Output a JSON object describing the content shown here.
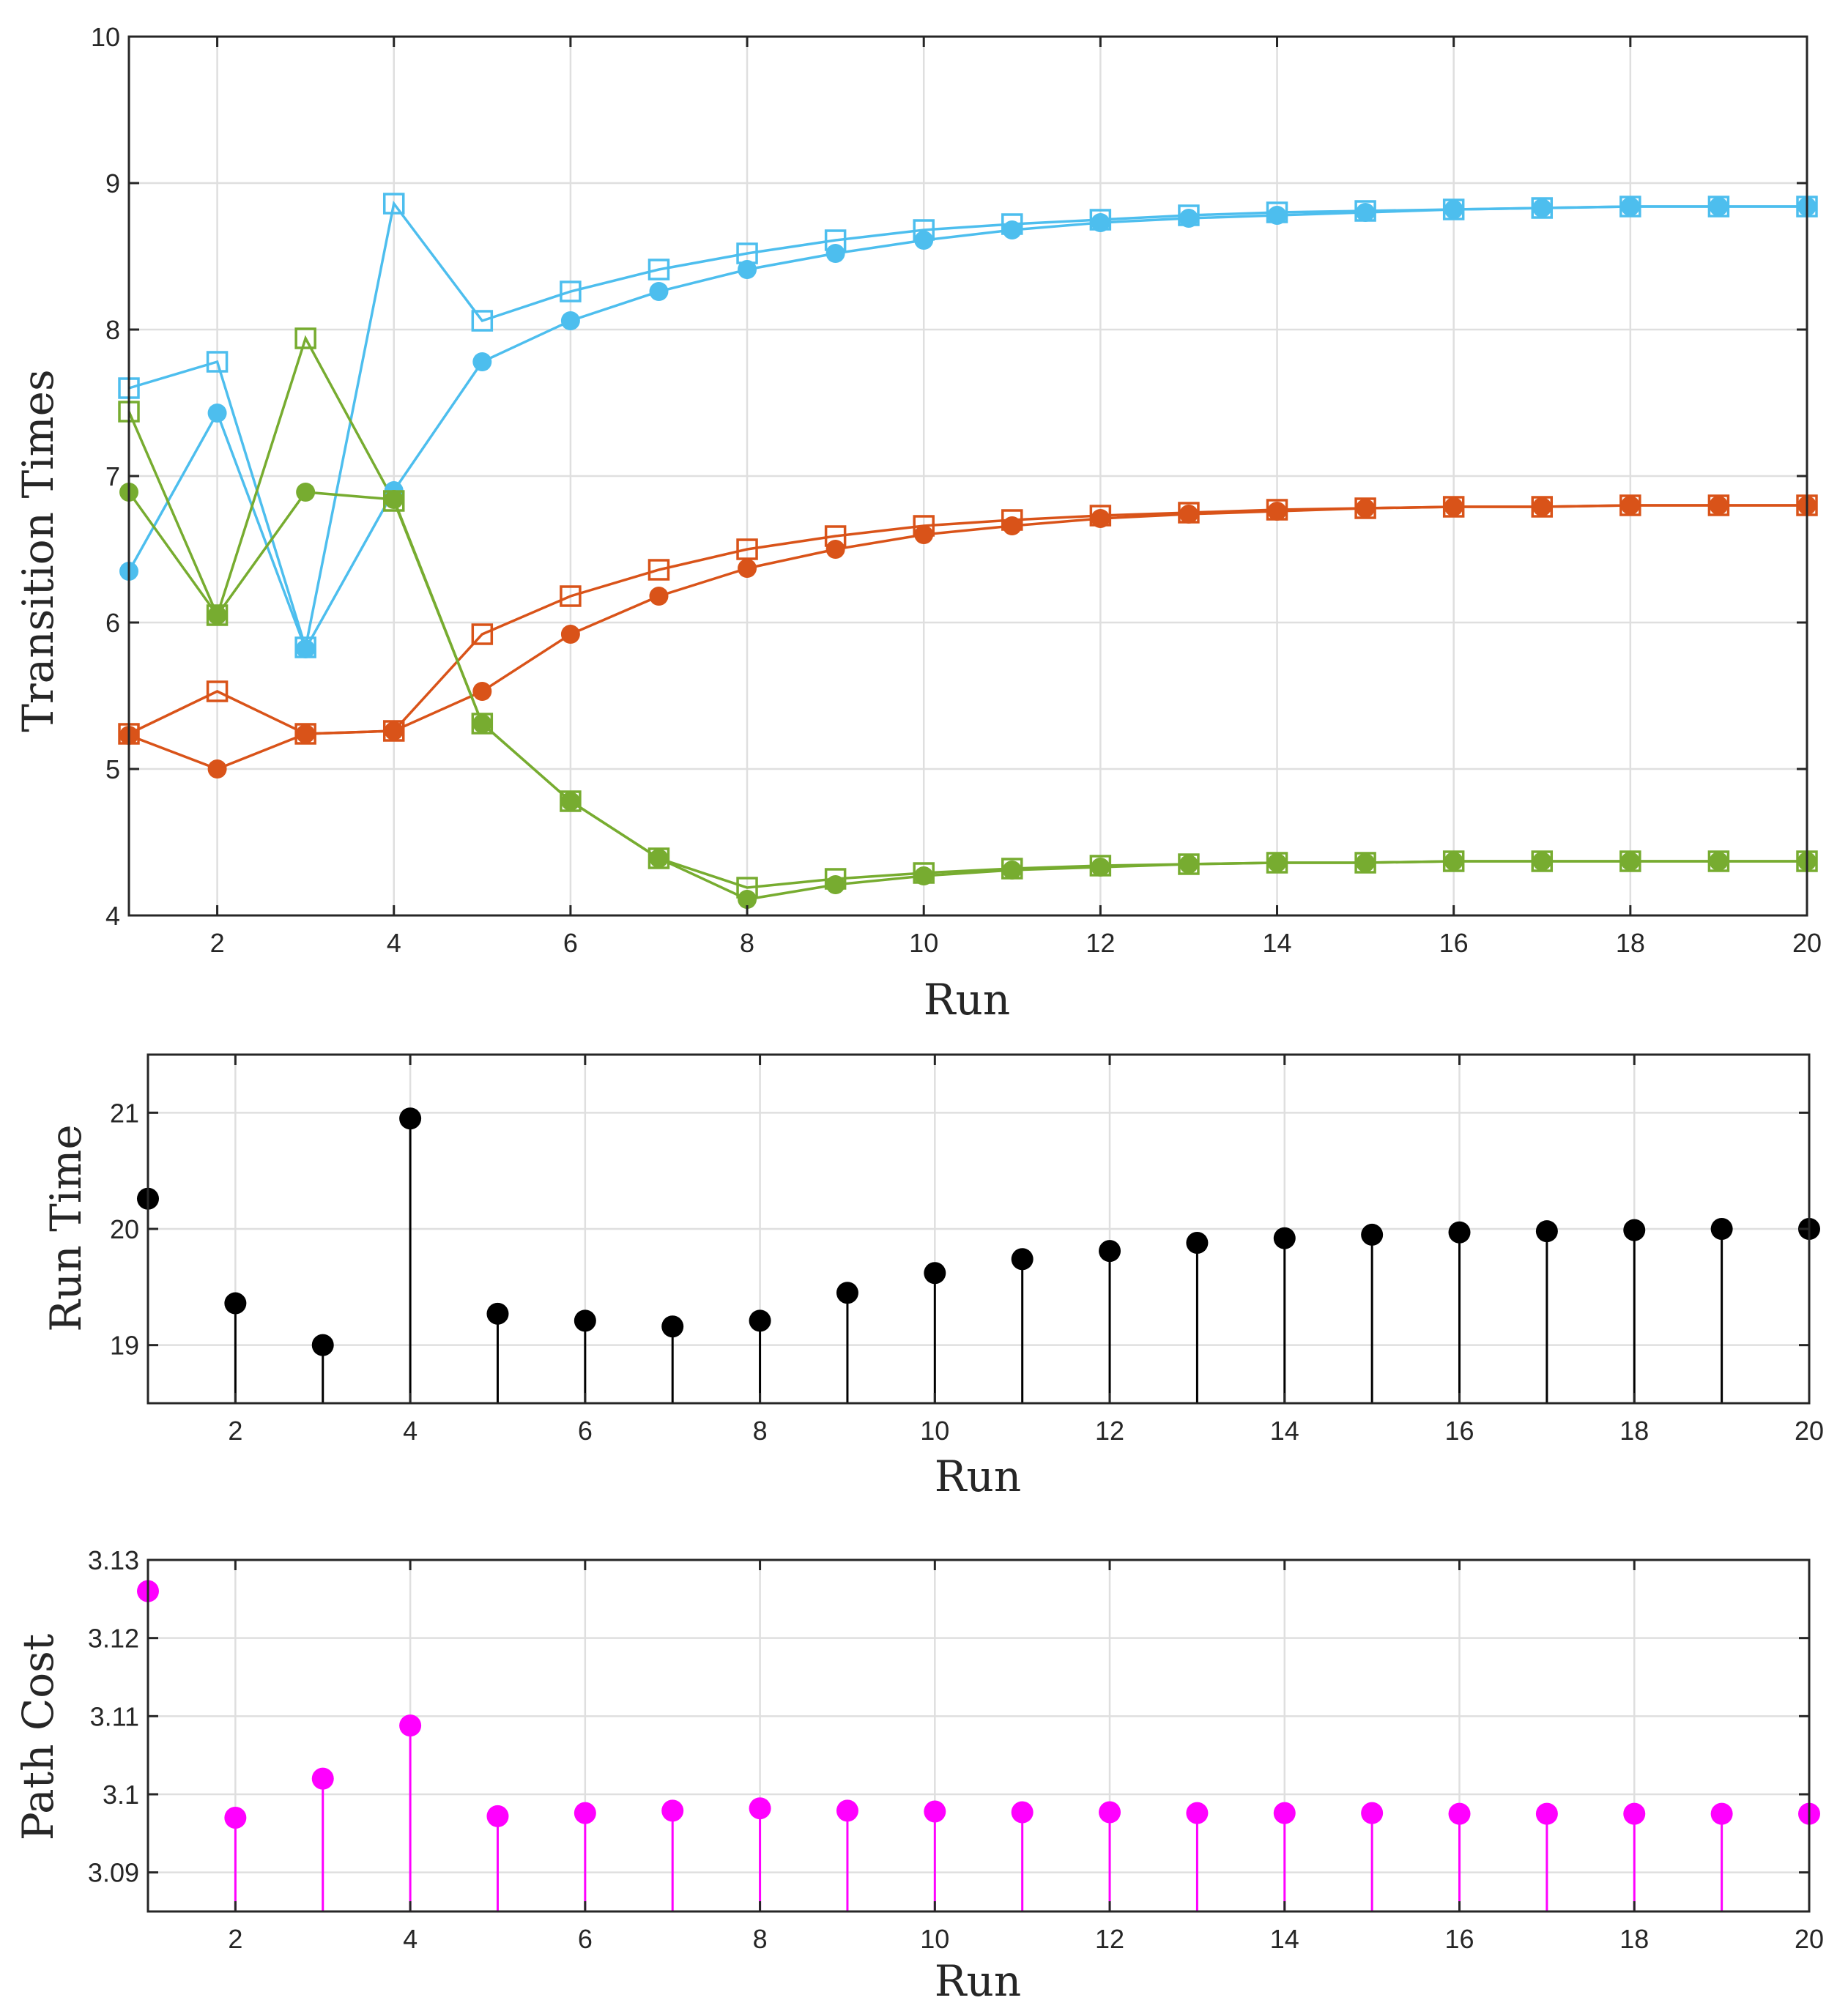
{
  "chart_data": [
    {
      "type": "line",
      "xlabel": "Run",
      "ylabel": "Transition Times",
      "xlim": [
        1,
        20
      ],
      "ylim": [
        4,
        10
      ],
      "xticks": [
        2,
        4,
        6,
        8,
        10,
        12,
        14,
        16,
        18,
        20
      ],
      "yticks": [
        4,
        5,
        6,
        7,
        8,
        9,
        10
      ],
      "grid": true,
      "x": [
        1,
        2,
        3,
        4,
        5,
        6,
        7,
        8,
        9,
        10,
        11,
        12,
        13,
        14,
        15,
        16,
        17,
        18,
        19,
        20
      ],
      "series": [
        {
          "name": "blue-square",
          "color": "#4DBEEE",
          "marker": "square",
          "values": [
            7.6,
            7.78,
            5.83,
            8.86,
            8.06,
            8.26,
            8.41,
            8.52,
            8.61,
            8.68,
            8.72,
            8.75,
            8.78,
            8.8,
            8.81,
            8.82,
            8.83,
            8.84,
            8.84,
            8.84
          ]
        },
        {
          "name": "blue-circle",
          "color": "#4DBEEE",
          "marker": "circle",
          "values": [
            6.35,
            7.43,
            5.82,
            6.9,
            7.78,
            8.06,
            8.26,
            8.41,
            8.52,
            8.61,
            8.68,
            8.73,
            8.76,
            8.78,
            8.8,
            8.82,
            8.83,
            8.84,
            8.84,
            8.84
          ]
        },
        {
          "name": "orange-square",
          "color": "#D95319",
          "marker": "square",
          "values": [
            5.24,
            5.53,
            5.24,
            5.26,
            5.92,
            6.18,
            6.36,
            6.5,
            6.59,
            6.66,
            6.7,
            6.73,
            6.75,
            6.77,
            6.78,
            6.79,
            6.79,
            6.8,
            6.8,
            6.8
          ]
        },
        {
          "name": "orange-circle",
          "color": "#D95319",
          "marker": "circle",
          "values": [
            5.23,
            5.0,
            5.24,
            5.26,
            5.53,
            5.92,
            6.18,
            6.37,
            6.5,
            6.6,
            6.66,
            6.71,
            6.74,
            6.76,
            6.78,
            6.79,
            6.79,
            6.8,
            6.8,
            6.8
          ]
        },
        {
          "name": "green-square",
          "color": "#77AC30",
          "marker": "square",
          "values": [
            7.44,
            6.05,
            7.94,
            6.83,
            5.31,
            4.78,
            4.39,
            4.19,
            4.25,
            4.29,
            4.32,
            4.34,
            4.35,
            4.36,
            4.36,
            4.37,
            4.37,
            4.37,
            4.37,
            4.37
          ]
        },
        {
          "name": "green-circle",
          "color": "#77AC30",
          "marker": "circle",
          "values": [
            6.89,
            6.05,
            6.89,
            6.84,
            5.31,
            4.78,
            4.39,
            4.11,
            4.21,
            4.27,
            4.31,
            4.33,
            4.35,
            4.36,
            4.36,
            4.37,
            4.37,
            4.37,
            4.37,
            4.37
          ]
        }
      ]
    },
    {
      "type": "stem",
      "xlabel": "Run",
      "ylabel": "Run Time",
      "xlim": [
        1,
        20
      ],
      "ylim": [
        18.5,
        21.5
      ],
      "xticks": [
        2,
        4,
        6,
        8,
        10,
        12,
        14,
        16,
        18,
        20
      ],
      "yticks": [
        19,
        20,
        21
      ],
      "grid": true,
      "color": "#000000",
      "x": [
        1,
        2,
        3,
        4,
        5,
        6,
        7,
        8,
        9,
        10,
        11,
        12,
        13,
        14,
        15,
        16,
        17,
        18,
        19,
        20
      ],
      "values": [
        20.26,
        19.36,
        19.0,
        20.95,
        19.27,
        19.21,
        19.16,
        19.21,
        19.45,
        19.62,
        19.74,
        19.81,
        19.88,
        19.92,
        19.95,
        19.97,
        19.98,
        19.99,
        20.0,
        20.0
      ]
    },
    {
      "type": "stem",
      "xlabel": "Run",
      "ylabel": "Path Cost",
      "xlim": [
        1,
        20
      ],
      "ylim": [
        3.085,
        3.13
      ],
      "xticks": [
        2,
        4,
        6,
        8,
        10,
        12,
        14,
        16,
        18,
        20
      ],
      "yticks": [
        3.09,
        3.1,
        3.11,
        3.12,
        3.13
      ],
      "ytick_labels": [
        "3.09",
        "3.1",
        "3.11",
        "3.12",
        "3.13"
      ],
      "grid": true,
      "color": "#FF00FF",
      "x": [
        1,
        2,
        3,
        4,
        5,
        6,
        7,
        8,
        9,
        10,
        11,
        12,
        13,
        14,
        15,
        16,
        17,
        18,
        19,
        20
      ],
      "values": [
        3.126,
        3.097,
        3.102,
        3.1088,
        3.0972,
        3.0976,
        3.0979,
        3.0982,
        3.0979,
        3.0978,
        3.0977,
        3.0977,
        3.0976,
        3.0976,
        3.0976,
        3.0975,
        3.0975,
        3.0975,
        3.0975,
        3.0975
      ]
    }
  ]
}
